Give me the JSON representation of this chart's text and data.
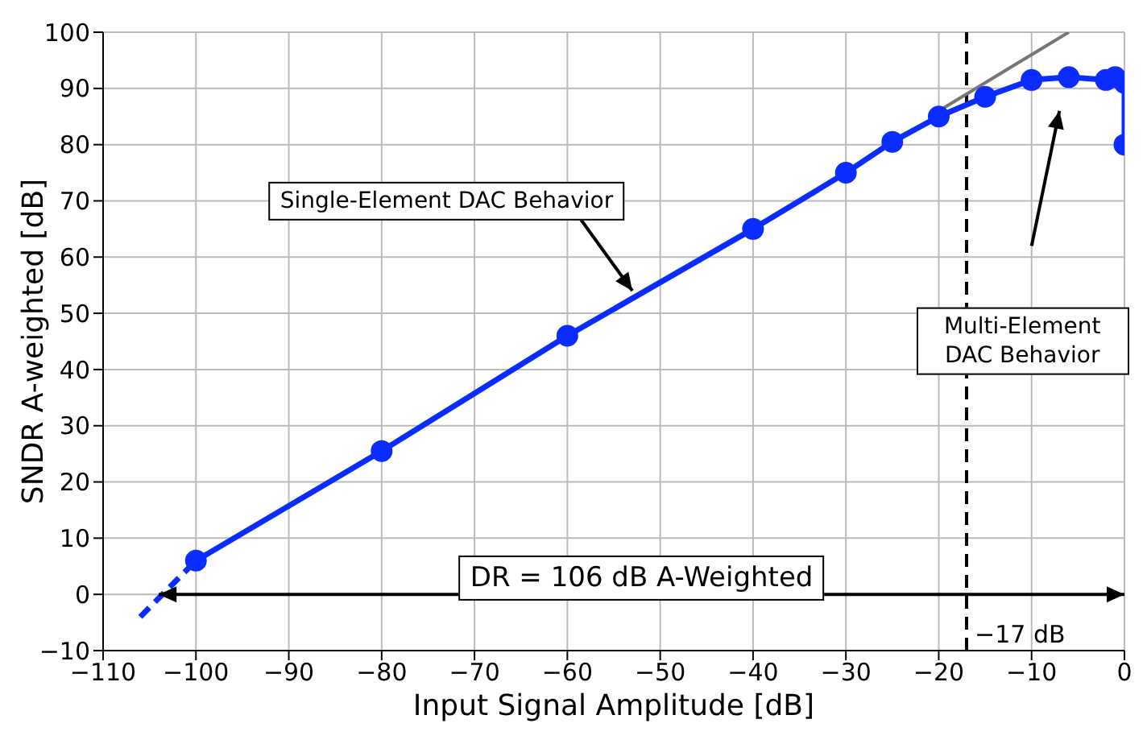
{
  "chart_data": {
    "type": "line",
    "xlabel": "Input Signal Amplitude [dB]",
    "ylabel": "SNDR A-weighted [dB]",
    "xlim": [
      -110,
      0
    ],
    "xticks": [
      -110,
      -100,
      -90,
      -80,
      -70,
      -60,
      -50,
      -40,
      -30,
      -20,
      -10,
      0
    ],
    "ylim": [
      -10,
      100
    ],
    "yticks": [
      -10,
      0,
      10,
      20,
      30,
      40,
      50,
      60,
      70,
      80,
      90,
      100
    ],
    "grid": true,
    "series": [
      {
        "color": "#0a2cff",
        "marker": "circle",
        "line_style": "solid",
        "x": [
          -100,
          -80,
          -60,
          -40,
          -30,
          -25,
          -20,
          -15,
          -10,
          -6,
          -2,
          -1,
          0,
          0
        ],
        "values": [
          6,
          25.5,
          46,
          65,
          75,
          80.5,
          85,
          88.5,
          91.5,
          92,
          91.5,
          92,
          91,
          80
        ]
      },
      {
        "color": "#0a2cff",
        "marker": "none",
        "line_style": "dashed",
        "x": [
          -106,
          -100
        ],
        "values": [
          -4,
          6
        ]
      },
      {
        "color": "#777777",
        "marker": "none",
        "line_style": "solid",
        "x": [
          -20,
          -6
        ],
        "values": [
          86,
          100
        ]
      }
    ],
    "ref_lines": [
      {
        "axis": "x",
        "value": -17,
        "label": "−17 dB",
        "color": "#000000",
        "line_style": "dashed"
      }
    ],
    "annotations": [
      {
        "text": "Single-Element DAC Behavior",
        "x": -53,
        "y": 54
      },
      "Multi-Element DAC Behavior",
      "DR = 106 dB A-Weighted"
    ]
  }
}
